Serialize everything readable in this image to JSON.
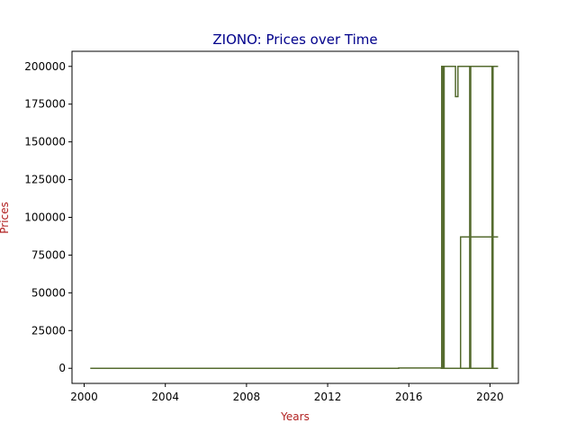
{
  "chart_data": {
    "type": "line",
    "title": "ZIONO: Prices over Time",
    "xlabel": "Years",
    "ylabel": "Prices",
    "title_color": "#00008b",
    "label_color": "#b22222",
    "line_color": "#556b2f",
    "xlim": [
      1999.4,
      2021.4
    ],
    "ylim": [
      -10000,
      210000
    ],
    "xticks": [
      2000,
      2004,
      2008,
      2012,
      2016,
      2020
    ],
    "yticks": [
      0,
      25000,
      50000,
      75000,
      100000,
      125000,
      150000,
      175000,
      200000
    ],
    "grid": false,
    "series": [
      {
        "points": [
          [
            2000.3,
            0
          ],
          [
            2015.5,
            0
          ],
          [
            2015.5,
            200
          ],
          [
            2017.6,
            200
          ],
          [
            2017.6,
            0
          ],
          [
            2017.62,
            0
          ],
          [
            2017.62,
            200000
          ],
          [
            2017.68,
            200000
          ],
          [
            2017.68,
            0
          ],
          [
            2017.74,
            0
          ],
          [
            2017.74,
            200000
          ],
          [
            2018.3,
            200000
          ],
          [
            2018.3,
            180000
          ],
          [
            2018.42,
            180000
          ],
          [
            2018.42,
            200000
          ],
          [
            2019.0,
            200000
          ],
          [
            2019.0,
            0
          ],
          [
            2019.05,
            0
          ],
          [
            2019.05,
            200000
          ],
          [
            2020.1,
            200000
          ],
          [
            2020.1,
            0
          ],
          [
            2020.15,
            0
          ],
          [
            2020.15,
            200000
          ],
          [
            2020.4,
            200000
          ]
        ]
      },
      {
        "points": [
          [
            2017.6,
            0
          ],
          [
            2017.66,
            0
          ],
          [
            2017.66,
            4000
          ],
          [
            2017.72,
            4000
          ],
          [
            2017.72,
            0
          ],
          [
            2018.55,
            0
          ],
          [
            2018.55,
            87000
          ],
          [
            2020.4,
            87000
          ]
        ]
      },
      {
        "points": [
          [
            2017.8,
            0
          ],
          [
            2020.4,
            0
          ]
        ]
      }
    ]
  }
}
